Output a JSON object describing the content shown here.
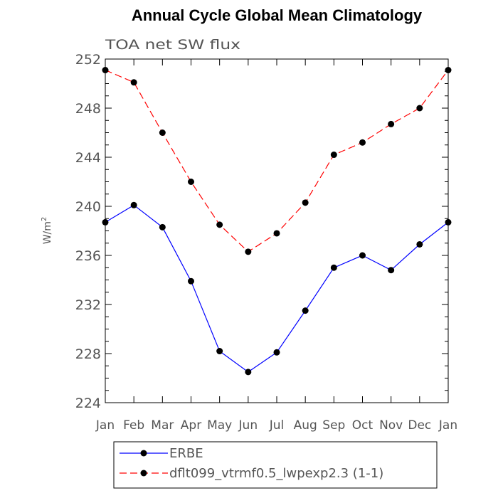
{
  "chart_data": {
    "type": "line",
    "title": "Annual Cycle Global Mean Climatology",
    "subtitle": "TOA net SW flux",
    "ylabel": "W/m",
    "ylabel_sup": "2",
    "xlabel": "",
    "categories": [
      "Jan",
      "Feb",
      "Mar",
      "Apr",
      "May",
      "Jun",
      "Jul",
      "Aug",
      "Sep",
      "Oct",
      "Nov",
      "Dec",
      "Jan"
    ],
    "ylim": [
      224,
      252
    ],
    "yticks": [
      224,
      228,
      232,
      236,
      240,
      244,
      248,
      252
    ],
    "grid": false,
    "legend_position": "bottom",
    "series": [
      {
        "name": "ERBE",
        "color": "#0000ff",
        "dash": "solid",
        "marker": "circle",
        "values": [
          238.7,
          240.1,
          238.3,
          233.9,
          228.2,
          226.5,
          228.1,
          231.5,
          235.0,
          236.0,
          234.8,
          236.9,
          238.7
        ]
      },
      {
        "name": "dflt099_vtrmf0.5_lwpexp2.3 (1-1)",
        "color": "#ff0000",
        "dash": "dashed",
        "marker": "circle",
        "values": [
          251.1,
          250.1,
          246.0,
          242.0,
          238.5,
          236.3,
          237.8,
          240.3,
          244.2,
          245.2,
          246.7,
          248.0,
          251.1
        ]
      }
    ]
  }
}
